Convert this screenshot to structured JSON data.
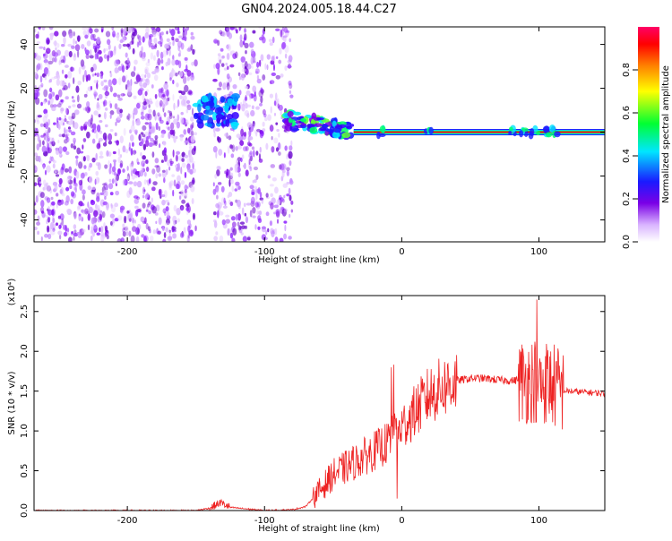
{
  "title": "GN04.2024.005.18.44.C27",
  "chart_data": [
    {
      "type": "heatmap",
      "xlabel": "Height of straight line (km)",
      "ylabel": "Frequency (Hz)",
      "xlim": [
        -268,
        148
      ],
      "ylim": [
        -50,
        48
      ],
      "x_ticks": [
        -200,
        -100,
        0,
        100
      ],
      "x_tick_labels": [
        "-200",
        "-100",
        "0",
        "100"
      ],
      "y_ticks": [
        -40,
        -20,
        0,
        20,
        40
      ],
      "y_tick_labels": [
        "-40",
        "-20",
        "0",
        "20",
        "40"
      ],
      "colorbar": {
        "label": "Normalized spectral amplitude",
        "range": [
          0,
          1
        ],
        "ticks": [
          0.0,
          0.2,
          0.4,
          0.6,
          0.8
        ],
        "tick_labels": [
          "0.0",
          "0.2",
          "0.4",
          "0.6",
          "0.8"
        ],
        "colormap": [
          "#ffffff",
          "#d9b3ff",
          "#7a00e6",
          "#1a1aff",
          "#00e6ff",
          "#00ff33",
          "#ffff00",
          "#ff8000",
          "#ff0000",
          "#ff0066"
        ]
      },
      "features": [
        {
          "name": "noise",
          "x_range": [
            -268,
            -150
          ],
          "freq_range": [
            -50,
            48
          ],
          "amplitude": 0.15
        },
        {
          "name": "noise",
          "x_range": [
            -137,
            -80
          ],
          "freq_range": [
            -50,
            48
          ],
          "amplitude": 0.12
        },
        {
          "name": "burst",
          "x_range": [
            -150,
            -120
          ],
          "freq_center": 10,
          "amplitude": 0.35
        },
        {
          "name": "tone",
          "x_range": [
            -85,
            148
          ],
          "freq_center": 0,
          "amplitude": 0.9
        }
      ],
      "grid": false
    },
    {
      "type": "line",
      "xlabel": "Height of straight line (km)",
      "ylabel": "SNR (10 * v/v)",
      "y_multiplier": "(x10⁴)",
      "xlim": [
        -268,
        148
      ],
      "ylim": [
        0,
        2.7
      ],
      "x_ticks": [
        -200,
        -100,
        0,
        100
      ],
      "x_tick_labels": [
        "-200",
        "-100",
        "0",
        "100"
      ],
      "y_ticks": [
        0.0,
        0.5,
        1.0,
        1.5,
        2.0,
        2.5
      ],
      "y_tick_labels": [
        "0.0",
        "0.5",
        "1.0",
        "1.5",
        "2.0",
        "2.5"
      ],
      "series_color": "#ee2222",
      "series": [
        {
          "x": [
            -268,
            -200,
            -150,
            -140,
            -132,
            -125,
            -100,
            -80,
            -70,
            -60,
            -50,
            -40,
            -30,
            -20,
            -10,
            0,
            10,
            20,
            30,
            40,
            50,
            60,
            70,
            80,
            85,
            90,
            95,
            100,
            105,
            110,
            115,
            120,
            130,
            140,
            148
          ],
          "y": [
            0.0,
            0.0,
            0.0,
            0.03,
            0.1,
            0.04,
            0.0,
            0.01,
            0.05,
            0.25,
            0.45,
            0.55,
            0.65,
            0.75,
            0.85,
            1.05,
            1.25,
            1.45,
            1.55,
            1.63,
            1.66,
            1.66,
            1.64,
            1.63,
            1.64,
            1.62,
            1.65,
            1.6,
            1.62,
            1.58,
            1.52,
            1.5,
            1.49,
            1.48,
            1.47
          ]
        }
      ],
      "grid": false
    }
  ]
}
